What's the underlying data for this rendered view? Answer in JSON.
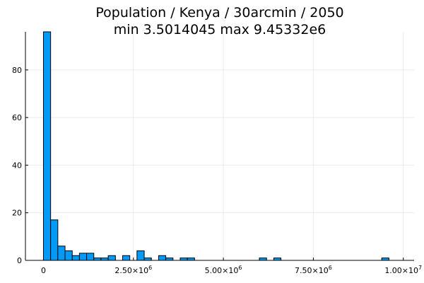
{
  "chart_data": {
    "type": "bar",
    "subtype": "histogram",
    "title": "Population / Kenya / 30arcmin / 2050",
    "subtitle": "min 3.5014045  max 9.45332e6",
    "xlabel": "",
    "ylabel": "",
    "bin_width": 200000,
    "bins_start": [
      0,
      200000,
      400000,
      600000,
      800000,
      1000000,
      1200000,
      1400000,
      1600000,
      1800000,
      2000000,
      2200000,
      2400000,
      2600000,
      2800000,
      3000000,
      3200000,
      3400000,
      3600000,
      3800000,
      4000000,
      4200000,
      4400000,
      4600000,
      4800000,
      5000000,
      5200000,
      5400000,
      5600000,
      5800000,
      6000000,
      6200000,
      6400000,
      6600000,
      6800000,
      7000000,
      7200000,
      7400000,
      7600000,
      7800000,
      8000000,
      8200000,
      8400000,
      8600000,
      8800000,
      9000000,
      9200000,
      9400000
    ],
    "counts": [
      96,
      17,
      6,
      4,
      2,
      3,
      3,
      1,
      1,
      2,
      0,
      2,
      0,
      4,
      1,
      0,
      2,
      1,
      0,
      1,
      1,
      0,
      0,
      0,
      0,
      0,
      0,
      0,
      0,
      0,
      1,
      0,
      1,
      0,
      0,
      0,
      0,
      0,
      0,
      0,
      0,
      0,
      0,
      0,
      0,
      0,
      0,
      1
    ],
    "xlim": [
      -500000,
      10300000
    ],
    "ylim": [
      0,
      96
    ],
    "x_ticks": [
      {
        "value": 0,
        "mantissa": "0",
        "exponent": ""
      },
      {
        "value": 2500000,
        "mantissa": "2.50×10",
        "exponent": "6"
      },
      {
        "value": 5000000,
        "mantissa": "5.00×10",
        "exponent": "6"
      },
      {
        "value": 7500000,
        "mantissa": "7.50×10",
        "exponent": "6"
      },
      {
        "value": 10000000,
        "mantissa": "1.00×10",
        "exponent": "7"
      }
    ],
    "y_ticks": [
      {
        "value": 0,
        "label": "0"
      },
      {
        "value": 20,
        "label": "20"
      },
      {
        "value": 40,
        "label": "40"
      },
      {
        "value": 60,
        "label": "60"
      },
      {
        "value": 80,
        "label": "80"
      }
    ],
    "grid": true,
    "legend": "none",
    "bar_color": "#009af9",
    "bar_edge_color": "#000000"
  }
}
